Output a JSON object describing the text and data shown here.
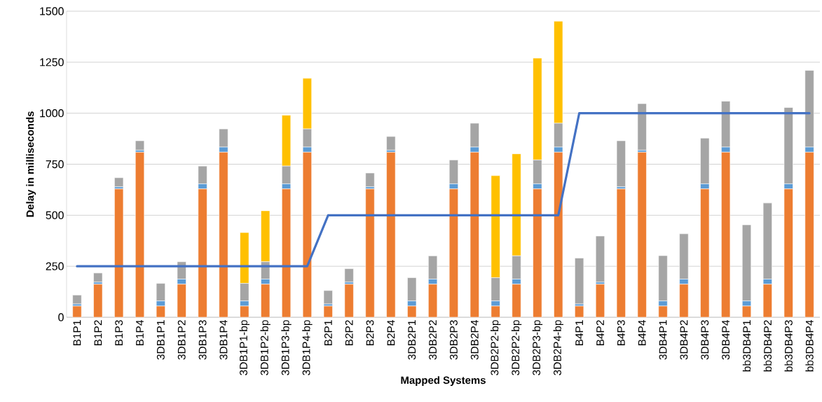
{
  "chart_data": {
    "type": "bar",
    "stacked": true,
    "xlabel": "Mapped Systems",
    "ylabel": "Delay in milliseconds",
    "categories": [
      "B1P1",
      "B1P2",
      "B1P3",
      "B1P4",
      "3DB1P1",
      "3DB1P2",
      "3DB1P3",
      "3DB1P4",
      "3DB1P1-bp",
      "3DB1P2-bp",
      "3DB1P3-bp",
      "3DB1P4-bp",
      "B2P1",
      "B2P2",
      "B2P3",
      "B2P4",
      "3DB2P1",
      "3DB2P2",
      "3DB2P3",
      "3DB2P4",
      "3DB2P2-bp",
      "3DB2P2-bp",
      "3DB2P3-bp",
      "3DB2P4-bp",
      "B4P1",
      "B4P2",
      "B4P3",
      "B4P4",
      "3DB4P1",
      "3DB4P2",
      "3DB4P3",
      "3DB4P4",
      "bb3DB4P1",
      "bb3DB4P2",
      "bb3DB4P3",
      "bb3DB4P4"
    ],
    "series": [
      {
        "color": "#ed7d31",
        "values": [
          55,
          162,
          629,
          809,
          55,
          162,
          629,
          809,
          55,
          162,
          629,
          809,
          55,
          162,
          629,
          809,
          55,
          162,
          629,
          809,
          55,
          162,
          629,
          809,
          55,
          162,
          629,
          809,
          55,
          162,
          629,
          809,
          55,
          162,
          629,
          809
        ]
      },
      {
        "color": "#5b9bd5",
        "values": [
          10,
          10,
          10,
          10,
          25,
          25,
          25,
          25,
          25,
          25,
          25,
          25,
          10,
          10,
          10,
          10,
          25,
          25,
          25,
          25,
          25,
          25,
          25,
          25,
          10,
          10,
          10,
          10,
          25,
          25,
          25,
          25,
          25,
          25,
          25,
          25
        ]
      },
      {
        "color": "#a5a5a5",
        "values": [
          44,
          45,
          45,
          46,
          86,
          85,
          87,
          89,
          86,
          85,
          87,
          89,
          66,
          66,
          68,
          67,
          114,
          114,
          117,
          117,
          114,
          114,
          117,
          117,
          225,
          226,
          226,
          228,
          222,
          222,
          224,
          225,
          373,
          373,
          374,
          376
        ]
      },
      {
        "color": "#ffc000",
        "values": [
          0,
          0,
          0,
          0,
          0,
          0,
          0,
          0,
          249,
          250,
          249,
          248,
          0,
          0,
          0,
          0,
          0,
          0,
          0,
          0,
          500,
          500,
          499,
          500,
          0,
          0,
          0,
          0,
          0,
          0,
          0,
          0,
          0,
          0,
          0,
          0
        ]
      },
      {
        "type": "line",
        "color": "#4472c4",
        "values": [
          250,
          250,
          250,
          250,
          250,
          250,
          250,
          250,
          250,
          250,
          250,
          250,
          500,
          500,
          500,
          500,
          500,
          500,
          500,
          500,
          500,
          500,
          500,
          500,
          1000,
          1000,
          1000,
          1000,
          1000,
          1000,
          1000,
          1000,
          1000,
          1000,
          1000,
          1000
        ]
      }
    ],
    "ylim": [
      0,
      1500
    ],
    "yticks": [
      0,
      250,
      500,
      750,
      1000,
      1250,
      1500
    ],
    "grid": "y"
  }
}
